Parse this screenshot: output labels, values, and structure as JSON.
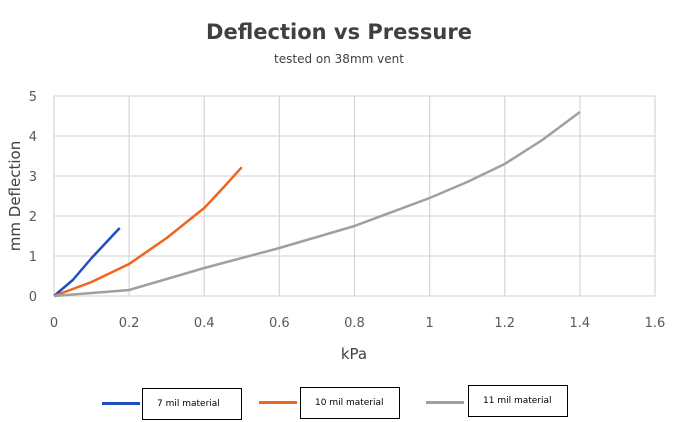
{
  "chart_data": {
    "type": "line",
    "title": "Deflection vs Pressure",
    "subtitle": "tested on 38mm vent",
    "xlabel": "kPa",
    "ylabel": "mm Deflection",
    "xlim": [
      0,
      1.6
    ],
    "ylim": [
      0,
      5
    ],
    "xticks": [
      "0",
      "0.2",
      "0.4",
      "0.6",
      "0.8",
      "1",
      "1.2",
      "1.4",
      "1.6"
    ],
    "yticks": [
      "0",
      "1",
      "2",
      "3",
      "4",
      "5"
    ],
    "grid": true,
    "legend_position": "bottom",
    "series": [
      {
        "name": "7 mil material",
        "color": "#1f4fbf",
        "x": [
          0,
          0.05,
          0.1,
          0.175
        ],
        "y": [
          0,
          0.4,
          0.95,
          1.7
        ]
      },
      {
        "name": "10 mil material",
        "color": "#f0641e",
        "x": [
          0,
          0.1,
          0.2,
          0.3,
          0.38,
          0.4,
          0.45,
          0.5
        ],
        "y": [
          0,
          0.35,
          0.8,
          1.45,
          2.05,
          2.2,
          2.7,
          3.22
        ]
      },
      {
        "name": "11 mil material",
        "color": "#a0a0a0",
        "x": [
          0,
          0.2,
          0.4,
          0.6,
          0.8,
          1.0,
          1.1,
          1.2,
          1.3,
          1.4
        ],
        "y": [
          0,
          0.15,
          0.7,
          1.2,
          1.75,
          2.45,
          2.85,
          3.3,
          3.9,
          4.6
        ]
      }
    ]
  }
}
